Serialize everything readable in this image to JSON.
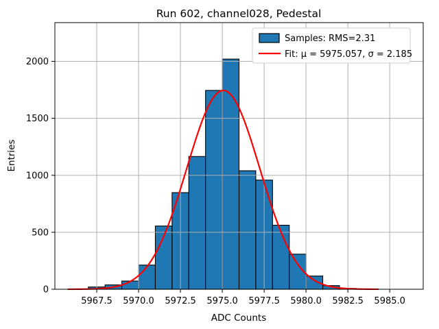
{
  "window": {
    "background": "#ffffff"
  },
  "colors": {
    "bar_fill": "#1f77b4",
    "bar_edge": "#000000",
    "fit_line": "#ff0000",
    "grid": "#b0b0b0",
    "spine": "#000000",
    "tick": "#000000",
    "legend_border": "#cccccc",
    "legend_background": "#ffffff",
    "text": "#000000"
  },
  "chart_data": {
    "type": "bar",
    "subtype": "histogram",
    "title": "Run 602, channel028, Pedestal",
    "xlabel": "ADC Counts",
    "ylabel": "Entries",
    "xlim": [
      5965,
      5987
    ],
    "ylim": [
      0,
      2340
    ],
    "grid": true,
    "xticks": [
      5967.5,
      5970.0,
      5972.5,
      5975.0,
      5977.5,
      5980.0,
      5982.5,
      5985.0
    ],
    "xtick_labels": [
      "5967.5",
      "5970.0",
      "5972.5",
      "5975.0",
      "5977.5",
      "5980.0",
      "5982.5",
      "5985.0"
    ],
    "yticks": [
      0,
      500,
      1000,
      1500,
      2000
    ],
    "ytick_labels": [
      "0",
      "500",
      "1000",
      "1500",
      "2000"
    ],
    "bin_width": 1,
    "bins_left_edge": [
      5967,
      5968,
      5969,
      5970,
      5971,
      5972,
      5973,
      5974,
      5975,
      5976,
      5977,
      5978,
      5979,
      5980,
      5981,
      5982
    ],
    "values": [
      20,
      38,
      72,
      212,
      555,
      848,
      1165,
      1745,
      2020,
      1040,
      958,
      562,
      308,
      116,
      32,
      7
    ],
    "fit_curve": {
      "type": "gaussian",
      "mu": 5975.057,
      "sigma": 2.185,
      "amplitude": 1745,
      "x_start": 5965.8,
      "x_end": 5984.3
    },
    "legend": {
      "position": "upper right",
      "entries": [
        {
          "label": "Samples: RMS=2.31",
          "swatch": "patch"
        },
        {
          "label": "Fit: μ = 5975.057, σ = 2.185",
          "swatch": "line"
        }
      ]
    }
  }
}
